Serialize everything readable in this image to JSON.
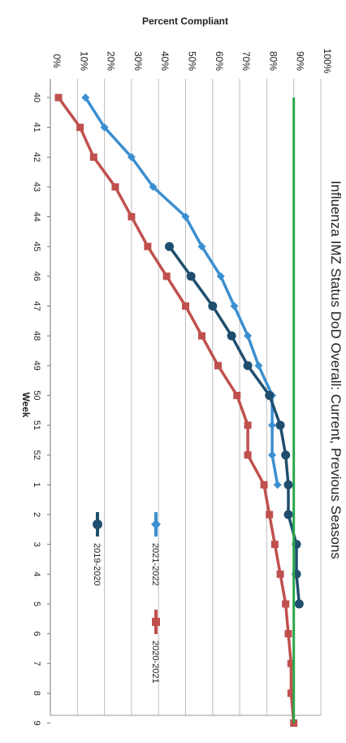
{
  "chart_data": {
    "type": "line",
    "orientation": "rotated-90-clockwise",
    "title": "Influenza IMZ Status DoD Overall: Current, Previous Seasons",
    "xlabel": "Week",
    "ylabel": "Percent Compliant",
    "ylim": [
      0,
      100
    ],
    "yticks": [
      "0%",
      "10%",
      "20%",
      "30%",
      "40%",
      "50%",
      "60%",
      "70%",
      "80%",
      "90%",
      "100%"
    ],
    "categories": [
      "40",
      "41",
      "42",
      "43",
      "44",
      "45",
      "46",
      "47",
      "48",
      "49",
      "50",
      "51",
      "52",
      "1",
      "2",
      "3",
      "4",
      "5",
      "6",
      "7",
      "8",
      "9"
    ],
    "grid": true,
    "legend_position": "right",
    "series": [
      {
        "name": "2021-2022",
        "color": "#3b8fd0",
        "marker": "diamond",
        "values": [
          13,
          20,
          30,
          38,
          50,
          56,
          63,
          68,
          73,
          77,
          82,
          82,
          82,
          84,
          null,
          null,
          null,
          null,
          null,
          null,
          null,
          null
        ]
      },
      {
        "name": "2020-2021",
        "color": "#c0504d",
        "marker": "square",
        "values": [
          3,
          11,
          16,
          24,
          30,
          36,
          43,
          50,
          56,
          62,
          69,
          73,
          73,
          79,
          81,
          83,
          85,
          87,
          88,
          89,
          89,
          90
        ]
      },
      {
        "name": "2019-2020",
        "color": "#1f4e6e",
        "marker": "circle",
        "values": [
          null,
          null,
          null,
          null,
          null,
          44,
          52,
          60,
          67,
          73,
          81,
          85,
          87,
          88,
          88,
          91,
          91,
          92,
          null,
          null,
          null,
          null
        ]
      },
      {
        "name": "",
        "color": "#2aa84a",
        "marker": "none",
        "values": [
          90,
          90,
          90,
          90,
          90,
          90,
          90,
          90,
          90,
          90,
          90,
          90,
          90,
          90,
          90,
          90,
          90,
          90,
          90,
          90,
          90,
          90
        ]
      }
    ]
  }
}
